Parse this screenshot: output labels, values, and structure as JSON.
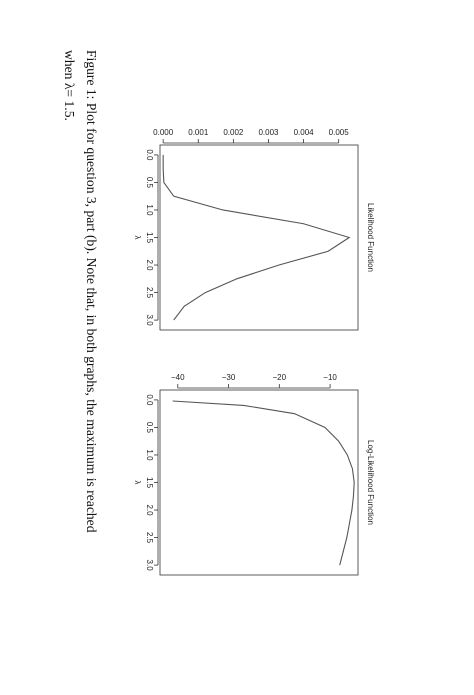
{
  "chart_data": [
    {
      "type": "line",
      "title": "Likelihood Function",
      "x_label": "λ",
      "x": [
        0.0,
        0.25,
        0.5,
        0.75,
        1.0,
        1.25,
        1.5,
        1.75,
        2.0,
        2.25,
        2.5,
        2.75,
        3.0
      ],
      "values": [
        0,
        0,
        2e-05,
        0.0003,
        0.0017,
        0.004,
        0.0053,
        0.0047,
        0.0033,
        0.0021,
        0.0012,
        0.0006,
        0.0003
      ],
      "color": "#555555",
      "xlim": [
        -0.18,
        3.18
      ],
      "xticks": [
        {
          "value": 0,
          "label": "0.0"
        },
        {
          "value": 0.5,
          "label": "0.5"
        },
        {
          "value": 1,
          "label": "1.0"
        },
        {
          "value": 1.5,
          "label": "1.5"
        },
        {
          "value": 2,
          "label": "2.0"
        },
        {
          "value": 2.5,
          "label": "2.5"
        },
        {
          "value": 3,
          "label": "3.0"
        }
      ],
      "ylim": [
        -9e-05,
        0.00555
      ],
      "yticks": [
        {
          "value": 0,
          "label": "0.000"
        },
        {
          "value": 0.001,
          "label": "0.001"
        },
        {
          "value": 0.002,
          "label": "0.002"
        },
        {
          "value": 0.003,
          "label": "0.003"
        },
        {
          "value": 0.004,
          "label": "0.004"
        },
        {
          "value": 0.005,
          "label": "0.005"
        }
      ]
    },
    {
      "type": "line",
      "title": "Log-Likelihood Function",
      "x_label": "λ",
      "x": [
        0.02,
        0.1,
        0.25,
        0.5,
        0.75,
        1.0,
        1.25,
        1.5,
        1.75,
        2.0,
        2.25,
        2.5,
        2.75,
        3.0
      ],
      "values": [
        -41,
        -27,
        -17,
        -11,
        -8.3,
        -6.6,
        -5.6,
        -5.25,
        -5.4,
        -5.7,
        -6.2,
        -6.7,
        -7.4,
        -8.1
      ],
      "color": "#555555",
      "xlim": [
        -0.18,
        3.18
      ],
      "xticks": [
        {
          "value": 0,
          "label": "0.0"
        },
        {
          "value": 0.5,
          "label": "0.5"
        },
        {
          "value": 1,
          "label": "1.0"
        },
        {
          "value": 1.5,
          "label": "1.5"
        },
        {
          "value": 2,
          "label": "2.0"
        },
        {
          "value": 2.5,
          "label": "2.5"
        },
        {
          "value": 3,
          "label": "3.0"
        }
      ],
      "ylim": [
        -43.5,
        -4.5
      ],
      "yticks": [
        {
          "value": -40,
          "label": "−40"
        },
        {
          "value": -30,
          "label": "−30"
        },
        {
          "value": -20,
          "label": "−20"
        },
        {
          "value": -10,
          "label": "−10"
        }
      ]
    }
  ],
  "caption": [
    "Figure 1: Plot for question 3, part (b). Note that, in both graphs, the maximum is reached",
    "when λ= 1.5."
  ]
}
